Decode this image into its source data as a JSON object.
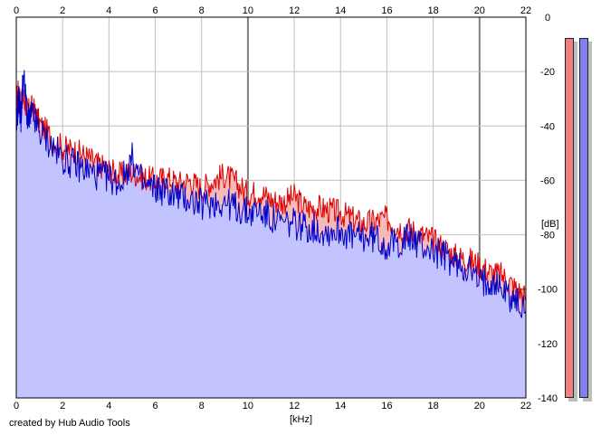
{
  "app": {
    "credit": "created by Hub Audio Tools"
  },
  "chart_data": {
    "type": "area",
    "title": "",
    "xlabel": "[kHz]",
    "ylabel": "[dB]",
    "xlim": [
      0,
      22
    ],
    "ylim": [
      -140,
      0
    ],
    "x_ticks": [
      0,
      2,
      4,
      6,
      8,
      10,
      12,
      14,
      16,
      18,
      20,
      22
    ],
    "y_ticks": [
      0,
      -20,
      -40,
      -60,
      -80,
      -100,
      -120,
      -140
    ],
    "grid": true,
    "colors": {
      "left": "#e00000",
      "right": "#0000c8",
      "fill": "#c3c3ff",
      "fill_red": "#f5baba",
      "grid": "#c0c0c0",
      "major_grid": "#808080"
    },
    "series": [
      {
        "color_key": "left",
        "x": [
          0.0,
          0.1,
          0.2,
          0.3,
          0.5,
          0.7,
          1.0,
          1.5,
          2.0,
          2.5,
          3.0,
          3.5,
          4.0,
          4.5,
          5.0,
          5.5,
          6.0,
          6.5,
          7.0,
          7.5,
          8.0,
          8.5,
          9.0,
          9.5,
          10.0,
          10.5,
          11.0,
          11.5,
          12.0,
          12.5,
          13.0,
          13.5,
          14.0,
          14.5,
          15.0,
          15.5,
          16.0,
          16.5,
          17.0,
          17.5,
          18.0,
          18.5,
          19.0,
          19.5,
          20.0,
          20.5,
          21.0,
          21.5,
          22.0
        ],
        "values": [
          -30,
          -27,
          -33,
          -29,
          -35,
          -33,
          -39,
          -44,
          -48,
          -49,
          -51,
          -54,
          -56,
          -58,
          -57,
          -59,
          -60,
          -59,
          -61,
          -60,
          -63,
          -60,
          -58,
          -61,
          -65,
          -64,
          -67,
          -68,
          -66,
          -70,
          -70,
          -71,
          -72,
          -74,
          -76,
          -75,
          -74,
          -77,
          -78,
          -80,
          -82,
          -85,
          -88,
          -89,
          -91,
          -94,
          -95,
          -99,
          -103
        ]
      },
      {
        "color_key": "right",
        "x": [
          0.0,
          0.1,
          0.2,
          0.3,
          0.5,
          0.7,
          1.0,
          1.5,
          2.0,
          2.5,
          3.0,
          3.5,
          4.0,
          4.5,
          5.0,
          5.5,
          6.0,
          6.5,
          7.0,
          7.5,
          8.0,
          8.5,
          9.0,
          9.5,
          10.0,
          10.5,
          11.0,
          11.5,
          12.0,
          12.5,
          13.0,
          13.5,
          14.0,
          14.5,
          15.0,
          15.5,
          16.0,
          16.5,
          17.0,
          17.5,
          18.0,
          18.5,
          19.0,
          19.5,
          20.0,
          20.5,
          21.0,
          21.5,
          22.0
        ],
        "values": [
          -42,
          -29,
          -37,
          -21,
          -38,
          -36,
          -42,
          -47,
          -52,
          -54,
          -56,
          -58,
          -59,
          -61,
          -52,
          -62,
          -63,
          -64,
          -66,
          -67,
          -69,
          -68,
          -68,
          -70,
          -72,
          -71,
          -74,
          -76,
          -76,
          -77,
          -78,
          -79,
          -78,
          -81,
          -81,
          -81,
          -84,
          -83,
          -81,
          -84,
          -86,
          -88,
          -91,
          -92,
          -98,
          -96,
          -100,
          -104,
          -108
        ]
      }
    ],
    "levels": {
      "left_db": -8,
      "right_db": -8
    }
  }
}
